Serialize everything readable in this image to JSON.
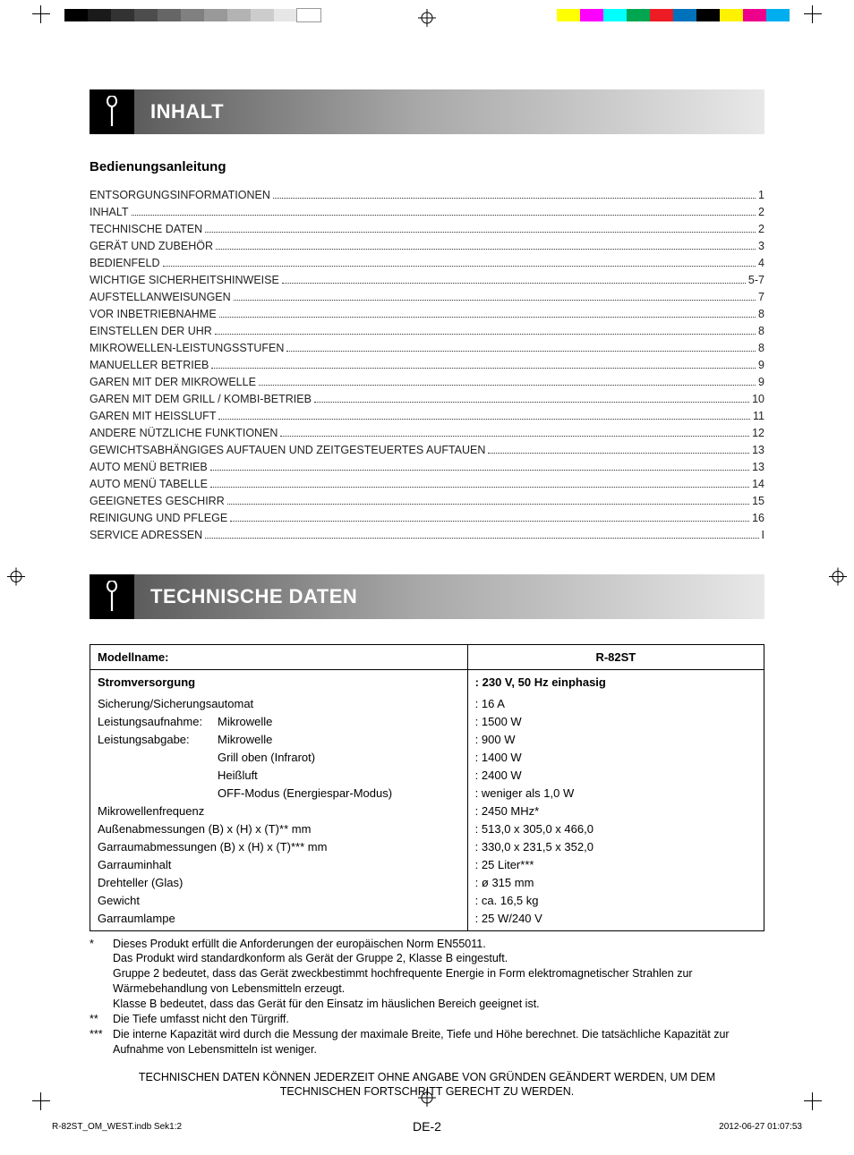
{
  "registration": {
    "gray_swatches": [
      "#000000",
      "#1a1a1a",
      "#333333",
      "#4d4d4d",
      "#666666",
      "#808080",
      "#999999",
      "#b3b3b3",
      "#cccccc",
      "#e6e6e6",
      "#ffffff"
    ],
    "color_swatches": [
      "#ffff00",
      "#ff00ff",
      "#00ffff",
      "#00a650",
      "#ed1c24",
      "#0072bc",
      "#000000",
      "#fff200",
      "#ec008c",
      "#00aeef"
    ]
  },
  "sections": {
    "inhalt_title": "INHALT",
    "tech_title": "TECHNISCHE DATEN"
  },
  "subheading": "Bedienungsanleitung",
  "toc": [
    {
      "label": "ENTSORGUNGSINFORMATIONEN",
      "page": "1"
    },
    {
      "label": "INHALT",
      "page": "2"
    },
    {
      "label": "TECHNISCHE DATEN",
      "page": "2"
    },
    {
      "label": "GERÄT UND ZUBEHÖR",
      "page": "3"
    },
    {
      "label": "BEDIENFELD",
      "page": "4"
    },
    {
      "label": "WICHTIGE SICHERHEITSHINWEISE",
      "page": "5-7"
    },
    {
      "label": "AUFSTELLANWEISUNGEN",
      "page": "7"
    },
    {
      "label": "VOR INBETRIEBNAHME",
      "page": "8"
    },
    {
      "label": "EINSTELLEN DER UHR",
      "page": "8"
    },
    {
      "label": "MIKROWELLEN-LEISTUNGSSTUFEN",
      "page": "8"
    },
    {
      "label": "MANUELLER BETRIEB",
      "page": "9"
    },
    {
      "label": "GAREN MIT DER MIKROWELLE",
      "page": "9"
    },
    {
      "label": "GAREN MIT DEM GRILL / KOMBI-BETRIEB",
      "page": "10"
    },
    {
      "label": "GAREN MIT HEISSLUFT",
      "page": "11"
    },
    {
      "label": "ANDERE NÜTZLICHE FUNKTIONEN",
      "page": "12"
    },
    {
      "label": "GEWICHTSABHÄNGIGES AUFTAUEN UND ZEITGESTEUERTES AUFTAUEN",
      "page": "13"
    },
    {
      "label": "AUTO MENÜ BETRIEB",
      "page": "13"
    },
    {
      "label": "AUTO MENÜ TABELLE",
      "page": "14"
    },
    {
      "label": "GEEIGNETES GESCHIRR",
      "page": "15"
    },
    {
      "label": "REINIGUNG UND PFLEGE",
      "page": "16"
    },
    {
      "label": "SERVICE ADRESSEN",
      "page": "I"
    }
  ],
  "spec": {
    "header_label": "Modellname:",
    "header_value": "R-82ST",
    "rows": [
      {
        "main": "Stromversorgung",
        "sub": "",
        "val": ": 230 V, 50 Hz einphasig"
      },
      {
        "main": "Sicherung/Sicherungsautomat",
        "sub": "",
        "val": ": 16 A"
      },
      {
        "main": "Leistungsaufnahme:",
        "sub": "Mikrowelle",
        "val": ": 1500 W"
      },
      {
        "main": "Leistungsabgabe:",
        "sub": "Mikrowelle",
        "val": ": 900 W"
      },
      {
        "main": "",
        "sub": "Grill oben (Infrarot)",
        "val": ": 1400 W"
      },
      {
        "main": "",
        "sub": "Heißluft",
        "val": ": 2400 W"
      },
      {
        "main": "",
        "sub": "OFF-Modus (Energiespar-Modus)",
        "val": ": weniger als 1,0 W"
      },
      {
        "main": "Mikrowellenfrequenz",
        "sub": "",
        "val": ": 2450 MHz*"
      },
      {
        "main": "Außenabmessungen (B) x (H) x (T)** mm",
        "sub": "",
        "val": ": 513,0 x 305,0 x 466,0"
      },
      {
        "main": "Garraumabmessungen (B) x (H) x (T)*** mm",
        "sub": "",
        "val": ": 330,0 x 231,5 x 352,0"
      },
      {
        "main": "Garrauminhalt",
        "sub": "",
        "val": ": 25 Liter***"
      },
      {
        "main": "Drehteller (Glas)",
        "sub": "",
        "val": ": ø 315 mm"
      },
      {
        "main": "Gewicht",
        "sub": "",
        "val": ": ca. 16,5 kg"
      },
      {
        "main": "Garraumlampe",
        "sub": "",
        "val": ": 25 W/240 V"
      }
    ]
  },
  "footnotes": [
    {
      "mark": "*",
      "text": "Dieses Produkt erfüllt die Anforderungen der europäischen Norm EN55011.\nDas Produkt wird standardkonform als Gerät der Gruppe 2, Klasse B eingestuft.\nGruppe 2 bedeutet, dass das Gerät zweckbestimmt hochfrequente Energie in Form elektromagnetischer Strahlen zur Wärmebehandlung von Lebensmitteln erzeugt.\nKlasse B bedeutet, dass das Gerät für den Einsatz im häuslichen Bereich geeignet ist."
    },
    {
      "mark": "**",
      "text": "Die Tiefe umfasst nicht den Türgriff."
    },
    {
      "mark": "***",
      "text": "Die interne Kapazität wird durch die Messung der maximale Breite, Tiefe und Höhe berechnet. Die tatsächliche Kapazität zur Aufnahme von Lebensmitteln ist weniger."
    }
  ],
  "disclaimer": "TECHNISCHEN DATEN KÖNNEN JEDERZEIT OHNE ANGABE VON GRÜNDEN GEÄNDERT WERDEN, UM DEM\nTECHNISCHEN FORTSCHRITT GERECHT ZU WERDEN.",
  "pagenum": "DE-2",
  "imprint": {
    "file": "R-82ST_OM_WEST.indb   Sek1:2",
    "date": "2012-06-27   01:07:53"
  },
  "styling": {
    "body_width": 954,
    "body_height": 1291,
    "section_title_gradient": [
      "#5c5c5c",
      "#a8a8a8",
      "#e8e8e8"
    ],
    "section_title_color": "#ffffff",
    "section_title_fontsize": 22,
    "icon_bg": "#000000",
    "toc_fontsize": 12.5,
    "toc_lineheight": 1.52,
    "spec_border_color": "#000000",
    "spec_fontsize": 13,
    "footnote_fontsize": 12.5
  }
}
